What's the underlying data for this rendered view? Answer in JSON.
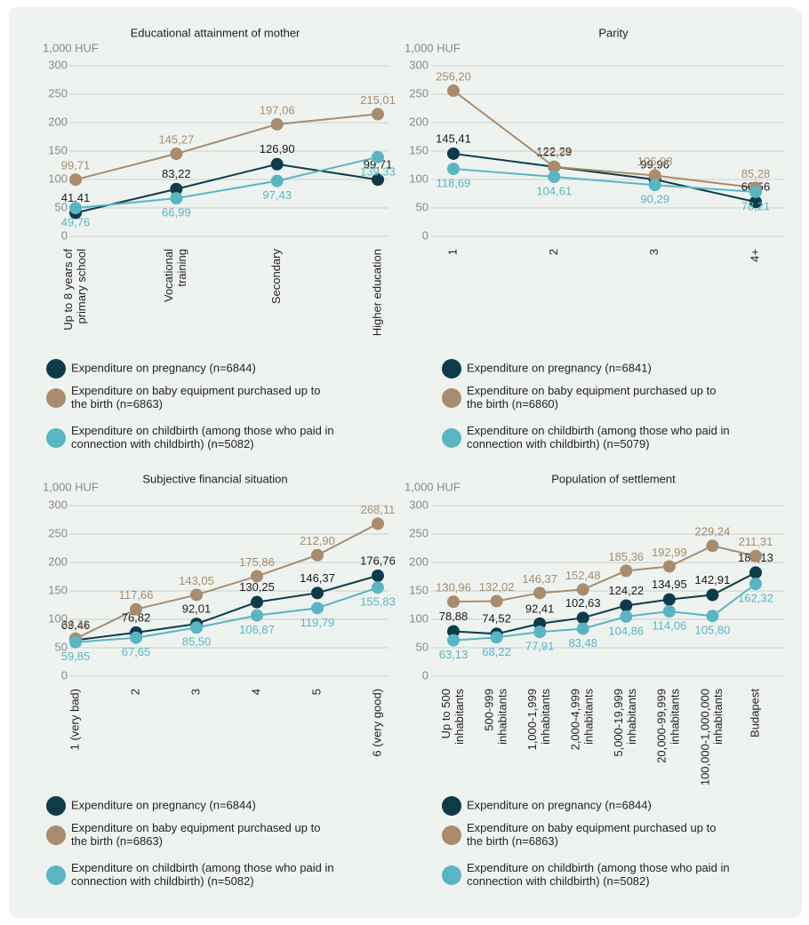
{
  "chart_data": [
    {
      "type": "line",
      "title": "Educational attainment of mother",
      "y_label": "1,000 HUF",
      "categories": [
        "Up to 8 years of\nprimary school",
        "Vocational\ntraining",
        "Secondary",
        "Higher education"
      ],
      "ylim": [
        0,
        300
      ],
      "yticks": [
        0,
        50,
        100,
        150,
        200,
        250,
        300
      ],
      "grid": true,
      "series": [
        {
          "name": "Expenditure on pregnancy (n=6844)",
          "color": "#0d3b4a",
          "values": [
            41.41,
            83.22,
            126.9,
            99.71
          ],
          "value_labels": [
            "41,41",
            "83,22",
            "126,90",
            "99,71"
          ]
        },
        {
          "name": "Expenditure on baby equipment purchased up to\nthe birth (n=6863)",
          "color": "#a88c6d",
          "values": [
            99.71,
            145.27,
            197.06,
            215.01
          ],
          "value_labels": [
            "99,71",
            "145,27",
            "197,06",
            "215,01"
          ]
        },
        {
          "name": "Expenditure on childbirth (among those who paid in\nconnection with childbirth) (n=5082)",
          "color": "#5ab5c3",
          "values": [
            49.76,
            66.99,
            97.43,
            139.33
          ],
          "value_labels": [
            "49,76",
            "66,99",
            "97,43",
            "139,33"
          ]
        }
      ]
    },
    {
      "type": "line",
      "title": "Parity",
      "y_label": "1,000 HUF",
      "categories": [
        "1",
        "2",
        "3",
        "4+"
      ],
      "ylim": [
        0,
        300
      ],
      "yticks": [
        0,
        50,
        100,
        150,
        200,
        250,
        300
      ],
      "grid": true,
      "series": [
        {
          "name": "Expenditure on pregnancy (n=6841)",
          "color": "#0d3b4a",
          "values": [
            145.41,
            122.29,
            99.96,
            60.56
          ],
          "value_labels": [
            "145,41",
            "122,29",
            "99,96",
            "60,56"
          ]
        },
        {
          "name": "Expenditure on baby equipment purchased up to\nthe birth (n=6860)",
          "color": "#a88c6d",
          "values": [
            256.2,
            122.34,
            106.98,
            85.28
          ],
          "value_labels": [
            "256,20",
            "122,34",
            "106,98",
            "85,28"
          ]
        },
        {
          "name": "Expenditure on childbirth (among those who paid in\nconnection with childbirth) (n=5079)",
          "color": "#5ab5c3",
          "values": [
            118.69,
            104.61,
            90.29,
            78.21
          ],
          "value_labels": [
            "118,69",
            "104,61",
            "90,29",
            "78,21"
          ]
        }
      ]
    },
    {
      "type": "line",
      "title": "Subjective financial situation",
      "y_label": "1,000 HUF",
      "categories": [
        "1 (very bad)",
        "2",
        "3",
        "4",
        "5",
        "6 (very good)"
      ],
      "ylim": [
        0,
        300
      ],
      "yticks": [
        0,
        50,
        100,
        150,
        200,
        250,
        300
      ],
      "grid": true,
      "series": [
        {
          "name": "Expenditure on pregnancy (n=6844)",
          "color": "#0d3b4a",
          "values": [
            63.46,
            76.82,
            92.01,
            130.25,
            146.37,
            176.76
          ],
          "value_labels": [
            "63,46",
            "76,82",
            "92,01",
            "130,25",
            "146,37",
            "176,76"
          ]
        },
        {
          "name": "Expenditure on baby equipment purchased up to\nthe birth (n=6863)",
          "color": "#a88c6d",
          "values": [
            66.11,
            117.66,
            143.05,
            175.86,
            212.9,
            268.11
          ],
          "value_labels": [
            "66,11",
            "117,66",
            "143,05",
            "175,86",
            "212,90",
            "268,11"
          ]
        },
        {
          "name": "Expenditure on childbirth (among those who paid in\nconnection with childbirth) (n=5082)",
          "color": "#5ab5c3",
          "values": [
            59.85,
            67.65,
            85.5,
            106.87,
            119.79,
            155.83
          ],
          "value_labels": [
            "59,85",
            "67,65",
            "85,50",
            "106,87",
            "119,79",
            "155,83"
          ]
        }
      ]
    },
    {
      "type": "line",
      "title": "Population of settlement",
      "y_label": "1,000 HUF",
      "categories": [
        "Up to 500\ninhabitants",
        "500-999\ninhabitants",
        "1,000-1,999\ninhabitants",
        "2,000-4,999\ninhabitants",
        "5,000-19,999\ninhabitants",
        "20,000-99,999\ninhabitants",
        "100,000-1,000,000\ninhabitants",
        "Budapest"
      ],
      "ylim": [
        0,
        300
      ],
      "yticks": [
        0,
        50,
        100,
        150,
        200,
        250,
        300
      ],
      "grid": true,
      "series": [
        {
          "name": "Expenditure on pregnancy (n=6844)",
          "color": "#0d3b4a",
          "values": [
            78.88,
            74.52,
            92.41,
            102.63,
            124.22,
            134.95,
            142.91,
            182.13
          ],
          "value_labels": [
            "78,88",
            "74,52",
            "92,41",
            "102,63",
            "124,22",
            "134,95",
            "142,91",
            "182,13"
          ]
        },
        {
          "name": "Expenditure on baby equipment purchased up to\nthe birth (n=6863)",
          "color": "#a88c6d",
          "values": [
            130.96,
            132.02,
            146.37,
            152.48,
            185.36,
            192.99,
            229.24,
            211.31
          ],
          "value_labels": [
            "130,96",
            "132,02",
            "146,37",
            "152,48",
            "185,36",
            "192,99",
            "229,24",
            "211,31"
          ]
        },
        {
          "name": "Expenditure on childbirth (among those who paid in\nconnection with childbirth) (n=5082)",
          "color": "#5ab5c3",
          "values": [
            63.13,
            68.22,
            77.91,
            83.48,
            104.86,
            114.06,
            105.8,
            162.32
          ],
          "value_labels": [
            "63,13",
            "68,22",
            "77,91",
            "83,48",
            "104,86",
            "114,06",
            "105,80",
            "162,32"
          ]
        }
      ]
    }
  ]
}
